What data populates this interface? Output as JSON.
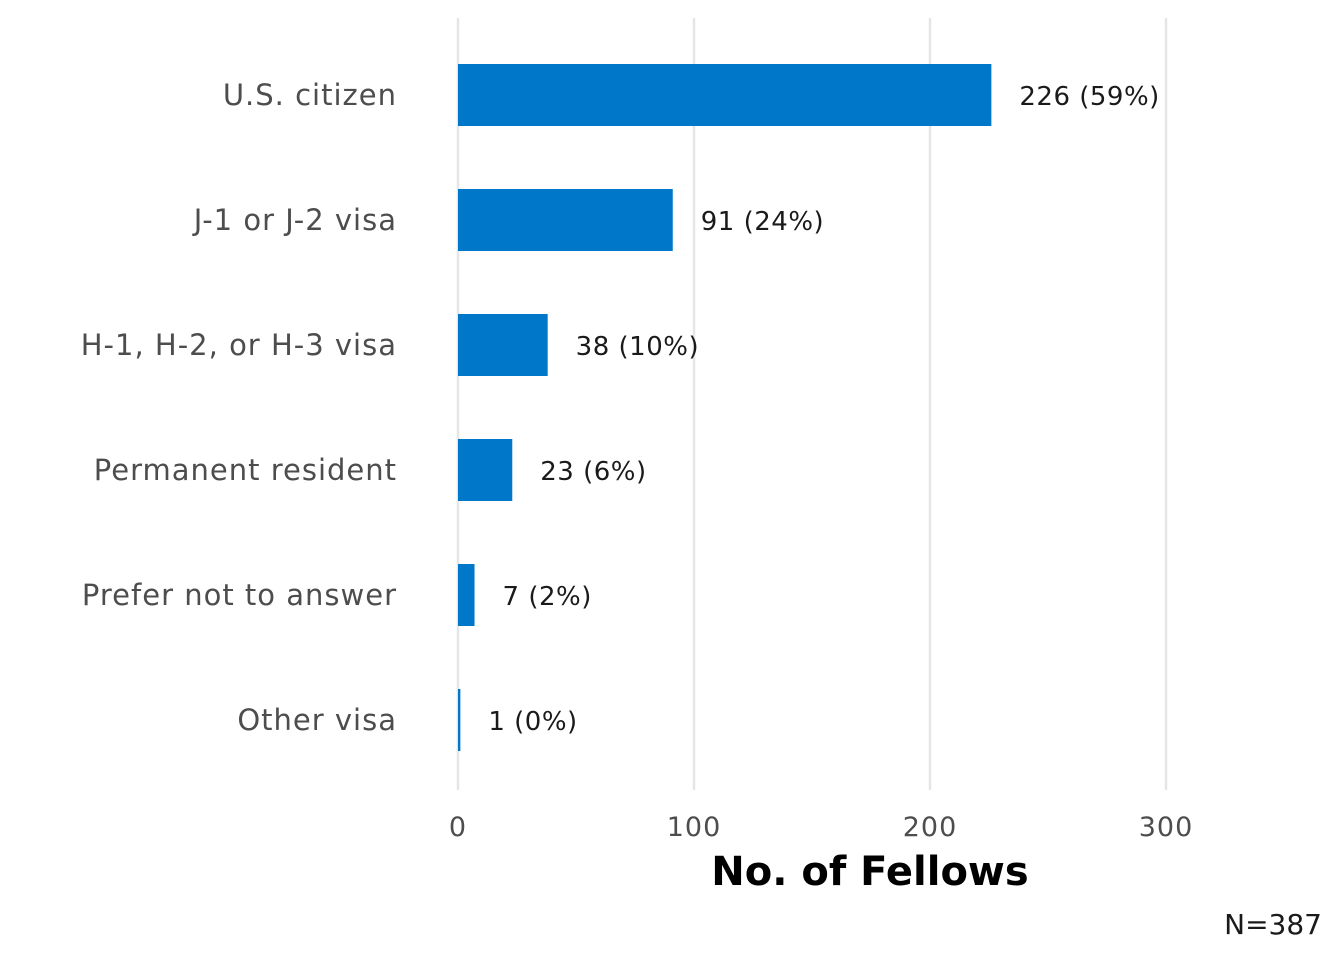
{
  "chart_data": {
    "type": "bar",
    "orientation": "horizontal",
    "categories": [
      "U.S. citizen",
      "J-1 or J-2 visa",
      "H-1, H-2, or H-3 visa",
      "Permanent resident",
      "Prefer not to answer",
      "Other visa"
    ],
    "values": [
      226,
      91,
      38,
      23,
      7,
      1
    ],
    "data_labels": [
      "226 (59%)",
      "91 (24%)",
      "38 (10%)",
      "23 (6%)",
      "7 (2%)",
      "1 (0%)"
    ],
    "xlabel": "No. of Fellows",
    "ylabel": "",
    "xlim": [
      0,
      300
    ],
    "x_ticks": [
      0,
      100,
      200,
      300
    ],
    "grid": "vertical",
    "legend": "none",
    "note": "N=387",
    "bar_color": "#0077c8",
    "grid_color": "#e6e6e6"
  }
}
